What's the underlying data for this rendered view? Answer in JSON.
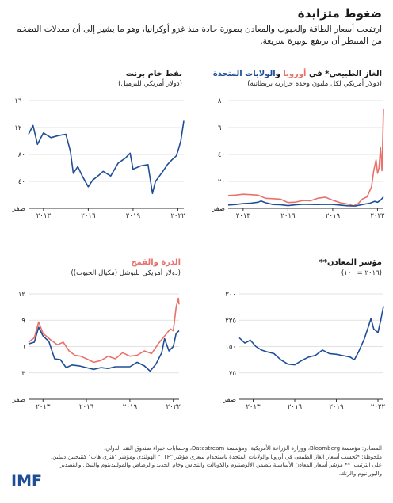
{
  "header": {
    "title": "ضغوط متزايدة",
    "subtitle": "ارتفعت أسعار الطاقة والحبوب والمعادن بصورة حادة منذ غزو أوكرانيا، وهو ما يشير إلى أن معدلات التضخم من المنتظر أن ترتفع بوتيرة سريعة."
  },
  "panels": {
    "gas": {
      "title_prefix": "الغاز الطبيعي* في ",
      "title_europe": "أوروبا",
      "title_and": " و",
      "title_us": "الولايات المتحدة",
      "unit": "(دولار أمريكي لكل مليون وحدة حرارية بريطانية)"
    },
    "oil": {
      "title": "نفط خام برنت",
      "unit": "(دولار أمريكي للبرميل)"
    },
    "metals": {
      "title": "مؤشر المعادن**",
      "unit": "(٢٠١٦ = ١٠٠)"
    },
    "grains": {
      "title_corn": "الذرة",
      "title_and": " و",
      "title_wheat": "القمح",
      "unit": "(دولار أمريكي للبوشل (مكيال الحبوب))"
    }
  },
  "footer": {
    "sources": "المصادر: مؤسسة Bloomberg، ووزارة الزراعة الأمريكية، ومؤسسة Datastream، وحسابات خبراء صندوق النقد الدولي.",
    "note": "ملحوظة: *تُحسب أسعار الغاز الطبيعي في أوروبا والولايات المتحدة باستخدام سعري مؤشر \"TTF\" الهولندي ومؤشر \"هنري هاب\" كنتيجيين دبيلين، على الترتيب. ** مؤشر أسعار المعادن الأساسية يتضمن الألومينيوم والكوبالت والنحاس وخام الحديد والرصاص والموليبدينوم والنيكل والقصدير واليورانيوم والزنك.",
    "logo": "IMF"
  },
  "colors": {
    "blue": "#1f4e96",
    "red": "#e8726b",
    "grid": "#d9d9d9"
  },
  "chart_data": [
    {
      "id": "gas",
      "type": "line",
      "x_ticks": [
        2013,
        2016,
        2019,
        2022
      ],
      "x_tick_labels": [
        "٢٠١٣",
        "٢٠١٦",
        "٢٠١٩",
        "٢٠٢٢"
      ],
      "xlim": [
        2012.0,
        2022.4
      ],
      "y_ticks": [
        0,
        20,
        40,
        60,
        80
      ],
      "y_tick_labels": [
        "صفر",
        "٢٠",
        "٤٠",
        "٦٠",
        "٨٠"
      ],
      "ylim": [
        0,
        80
      ],
      "series": [
        {
          "name": "أوروبا",
          "color": "#e8726b",
          "x": [
            2012.0,
            2012.5,
            2013.0,
            2013.5,
            2014.0,
            2014.5,
            2015.0,
            2015.5,
            2016.0,
            2016.5,
            2017.0,
            2017.5,
            2018.0,
            2018.5,
            2019.0,
            2019.5,
            2020.0,
            2020.4,
            2020.7,
            2021.0,
            2021.3,
            2021.6,
            2021.75,
            2021.9,
            2022.0,
            2022.1,
            2022.2,
            2022.3,
            2022.4
          ],
          "y": [
            9.5,
            9.8,
            10.5,
            10.2,
            9.8,
            7.5,
            7.2,
            6.8,
            4.3,
            4.6,
            5.8,
            5.6,
            7.5,
            8.3,
            6.0,
            4.2,
            3.2,
            1.8,
            3.5,
            7.0,
            8.5,
            16.0,
            28.0,
            36.0,
            26.0,
            30.0,
            45.0,
            28.0,
            74.0
          ]
        },
        {
          "name": "الولايات المتحدة",
          "color": "#1f4e96",
          "x": [
            2012.0,
            2012.5,
            2013.0,
            2013.5,
            2014.0,
            2014.2,
            2014.5,
            2015.0,
            2015.5,
            2016.0,
            2016.5,
            2017.0,
            2017.5,
            2018.0,
            2018.5,
            2019.0,
            2019.5,
            2020.0,
            2020.5,
            2021.0,
            2021.5,
            2021.8,
            2022.0,
            2022.2,
            2022.4
          ],
          "y": [
            2.5,
            2.8,
            3.5,
            3.8,
            4.5,
            5.5,
            4.2,
            2.8,
            2.7,
            2.0,
            2.6,
            3.0,
            2.9,
            2.8,
            3.0,
            2.9,
            2.4,
            1.9,
            1.7,
            2.8,
            3.8,
            5.2,
            4.5,
            6.0,
            8.5
          ]
        }
      ]
    },
    {
      "id": "oil",
      "type": "line",
      "x_ticks": [
        2013,
        2016,
        2019,
        2022
      ],
      "x_tick_labels": [
        "٢٠١٣",
        "٢٠١٦",
        "٢٠١٩",
        "٢٠٢٢"
      ],
      "xlim": [
        2012.0,
        2022.4
      ],
      "y_ticks": [
        0,
        40,
        80,
        120,
        160
      ],
      "y_tick_labels": [
        "صفر",
        "٤٠",
        "٨٠",
        "١٢٠",
        "١٦٠"
      ],
      "ylim": [
        0,
        160
      ],
      "series": [
        {
          "name": "نفط خام برنت",
          "color": "#1f4e96",
          "x": [
            2012.0,
            2012.3,
            2012.6,
            2013.0,
            2013.5,
            2014.0,
            2014.5,
            2014.8,
            2015.0,
            2015.3,
            2015.6,
            2016.0,
            2016.3,
            2016.6,
            2017.0,
            2017.5,
            2018.0,
            2018.5,
            2018.8,
            2019.0,
            2019.5,
            2020.0,
            2020.3,
            2020.5,
            2021.0,
            2021.3,
            2021.6,
            2021.9,
            2022.0,
            2022.2,
            2022.3,
            2022.4
          ],
          "y": [
            110,
            123,
            95,
            112,
            105,
            108,
            110,
            85,
            52,
            62,
            48,
            32,
            42,
            47,
            55,
            48,
            67,
            75,
            82,
            58,
            63,
            65,
            22,
            40,
            55,
            65,
            72,
            78,
            85,
            100,
            115,
            130
          ]
        }
      ]
    },
    {
      "id": "metals",
      "type": "line",
      "x_ticks": [
        2013,
        2016,
        2019,
        2022
      ],
      "x_tick_labels": [
        "٢٠١٣",
        "٢٠١٦",
        "٢٠١٩",
        "٢٠٢٢"
      ],
      "xlim": [
        2012.0,
        2022.4
      ],
      "y_ticks": [
        0,
        75,
        150,
        225,
        300
      ],
      "y_tick_labels": [
        "صفر",
        "٧٥",
        "١٥٠",
        "٢٢٥",
        "٣٠٠"
      ],
      "ylim": [
        0,
        300
      ],
      "series": [
        {
          "name": "مؤشر المعادن",
          "color": "#1f4e96",
          "x": [
            2012.0,
            2012.4,
            2012.8,
            2013.2,
            2013.6,
            2014.0,
            2014.5,
            2015.0,
            2015.5,
            2016.0,
            2016.5,
            2017.0,
            2017.5,
            2018.0,
            2018.5,
            2019.0,
            2019.5,
            2020.0,
            2020.3,
            2020.6,
            2021.0,
            2021.3,
            2021.5,
            2021.7,
            2022.0,
            2022.2,
            2022.4
          ],
          "y": [
            175,
            160,
            168,
            150,
            140,
            135,
            130,
            112,
            100,
            98,
            110,
            120,
            125,
            140,
            130,
            128,
            124,
            120,
            112,
            135,
            170,
            205,
            230,
            200,
            190,
            225,
            265
          ]
        }
      ]
    },
    {
      "id": "grains",
      "type": "line",
      "x_ticks": [
        2013,
        2016,
        2019,
        2022
      ],
      "x_tick_labels": [
        "٢٠١٣",
        "٢٠١٦",
        "٢٠١٩",
        "٢٠٢٢"
      ],
      "xlim": [
        2012.0,
        2022.4
      ],
      "y_ticks": [
        0,
        3,
        6,
        9,
        12
      ],
      "y_tick_labels": [
        "صفر",
        "٣",
        "٦",
        "٩",
        "١٢"
      ],
      "ylim": [
        0,
        12
      ],
      "series": [
        {
          "name": "القمح",
          "color": "#e8726b",
          "x": [
            2012.0,
            2012.4,
            2012.7,
            2013.0,
            2013.5,
            2014.0,
            2014.4,
            2014.8,
            2015.2,
            2015.6,
            2016.0,
            2016.5,
            2017.0,
            2017.5,
            2018.0,
            2018.5,
            2019.0,
            2019.5,
            2020.0,
            2020.5,
            2021.0,
            2021.4,
            2021.8,
            2022.0,
            2022.2,
            2022.35,
            2022.4
          ],
          "y": [
            6.5,
            7.0,
            8.8,
            7.5,
            6.8,
            6.2,
            6.5,
            5.5,
            5.0,
            4.9,
            4.6,
            4.2,
            4.4,
            4.9,
            4.6,
            5.3,
            4.9,
            5.0,
            5.5,
            5.2,
            6.4,
            7.2,
            8.0,
            7.8,
            10.5,
            11.5,
            10.8
          ]
        },
        {
          "name": "الذرة",
          "color": "#1f4e96",
          "x": [
            2012.0,
            2012.4,
            2012.7,
            2013.0,
            2013.4,
            2013.8,
            2014.2,
            2014.6,
            2015.0,
            2015.5,
            2016.0,
            2016.5,
            2017.0,
            2017.5,
            2018.0,
            2018.5,
            2019.0,
            2019.5,
            2020.0,
            2020.4,
            2020.8,
            2021.2,
            2021.4,
            2021.7,
            2022.0,
            2022.2,
            2022.4
          ],
          "y": [
            6.3,
            6.5,
            8.2,
            7.2,
            6.6,
            4.6,
            4.5,
            3.6,
            3.9,
            3.8,
            3.6,
            3.4,
            3.6,
            3.5,
            3.7,
            3.7,
            3.7,
            4.2,
            3.8,
            3.2,
            4.0,
            5.3,
            6.9,
            5.5,
            6.0,
            7.5,
            7.8
          ]
        }
      ]
    }
  ]
}
